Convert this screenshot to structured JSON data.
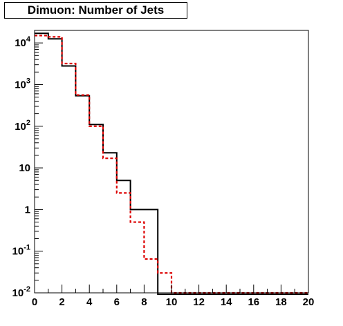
{
  "chart_data": {
    "type": "histogram",
    "title": "Dimuon: Number of Jets",
    "xlabel": "",
    "ylabel": "",
    "xlim": [
      0,
      20
    ],
    "ylim": [
      0.01,
      20000
    ],
    "y_scale": "log",
    "grid": false,
    "legend": "none",
    "x_ticks": [
      {
        "value": 0,
        "label": "0"
      },
      {
        "value": 2,
        "label": "2"
      },
      {
        "value": 4,
        "label": "4"
      },
      {
        "value": 6,
        "label": "6"
      },
      {
        "value": 8,
        "label": "8"
      },
      {
        "value": 10,
        "label": "10"
      },
      {
        "value": 12,
        "label": "12"
      },
      {
        "value": 14,
        "label": "14"
      },
      {
        "value": 16,
        "label": "16"
      },
      {
        "value": 18,
        "label": "18"
      },
      {
        "value": 20,
        "label": "20"
      }
    ],
    "y_ticks": [
      {
        "value": 0.01,
        "base": "10",
        "exp": "-2"
      },
      {
        "value": 0.1,
        "base": "10",
        "exp": "-1"
      },
      {
        "value": 1,
        "base": "1",
        "exp": ""
      },
      {
        "value": 10,
        "base": "10",
        "exp": ""
      },
      {
        "value": 100,
        "base": "10",
        "exp": "2"
      },
      {
        "value": 1000,
        "base": "10",
        "exp": "3"
      },
      {
        "value": 10000,
        "base": "10",
        "exp": "4"
      }
    ],
    "bin_edges": [
      0,
      1,
      2,
      3,
      4,
      5,
      6,
      7,
      8,
      9,
      10,
      11,
      12,
      13,
      14,
      15,
      16,
      17,
      18,
      19,
      20
    ],
    "series": [
      {
        "color": "#000000",
        "style": "solid",
        "values": [
          17000,
          12500,
          2800,
          540,
          110,
          23,
          5,
          1,
          1,
          0,
          0,
          0,
          0,
          0,
          0,
          0,
          0,
          0,
          0,
          0
        ]
      },
      {
        "color": "#dd0000",
        "style": "dashed",
        "values": [
          15000,
          14000,
          3200,
          560,
          100,
          17,
          2.5,
          0.5,
          0.065,
          0.03,
          0.01,
          0.01,
          0.01,
          0.01,
          0.01,
          0.01,
          0.01,
          0.01,
          0.01,
          0.01
        ]
      }
    ]
  }
}
